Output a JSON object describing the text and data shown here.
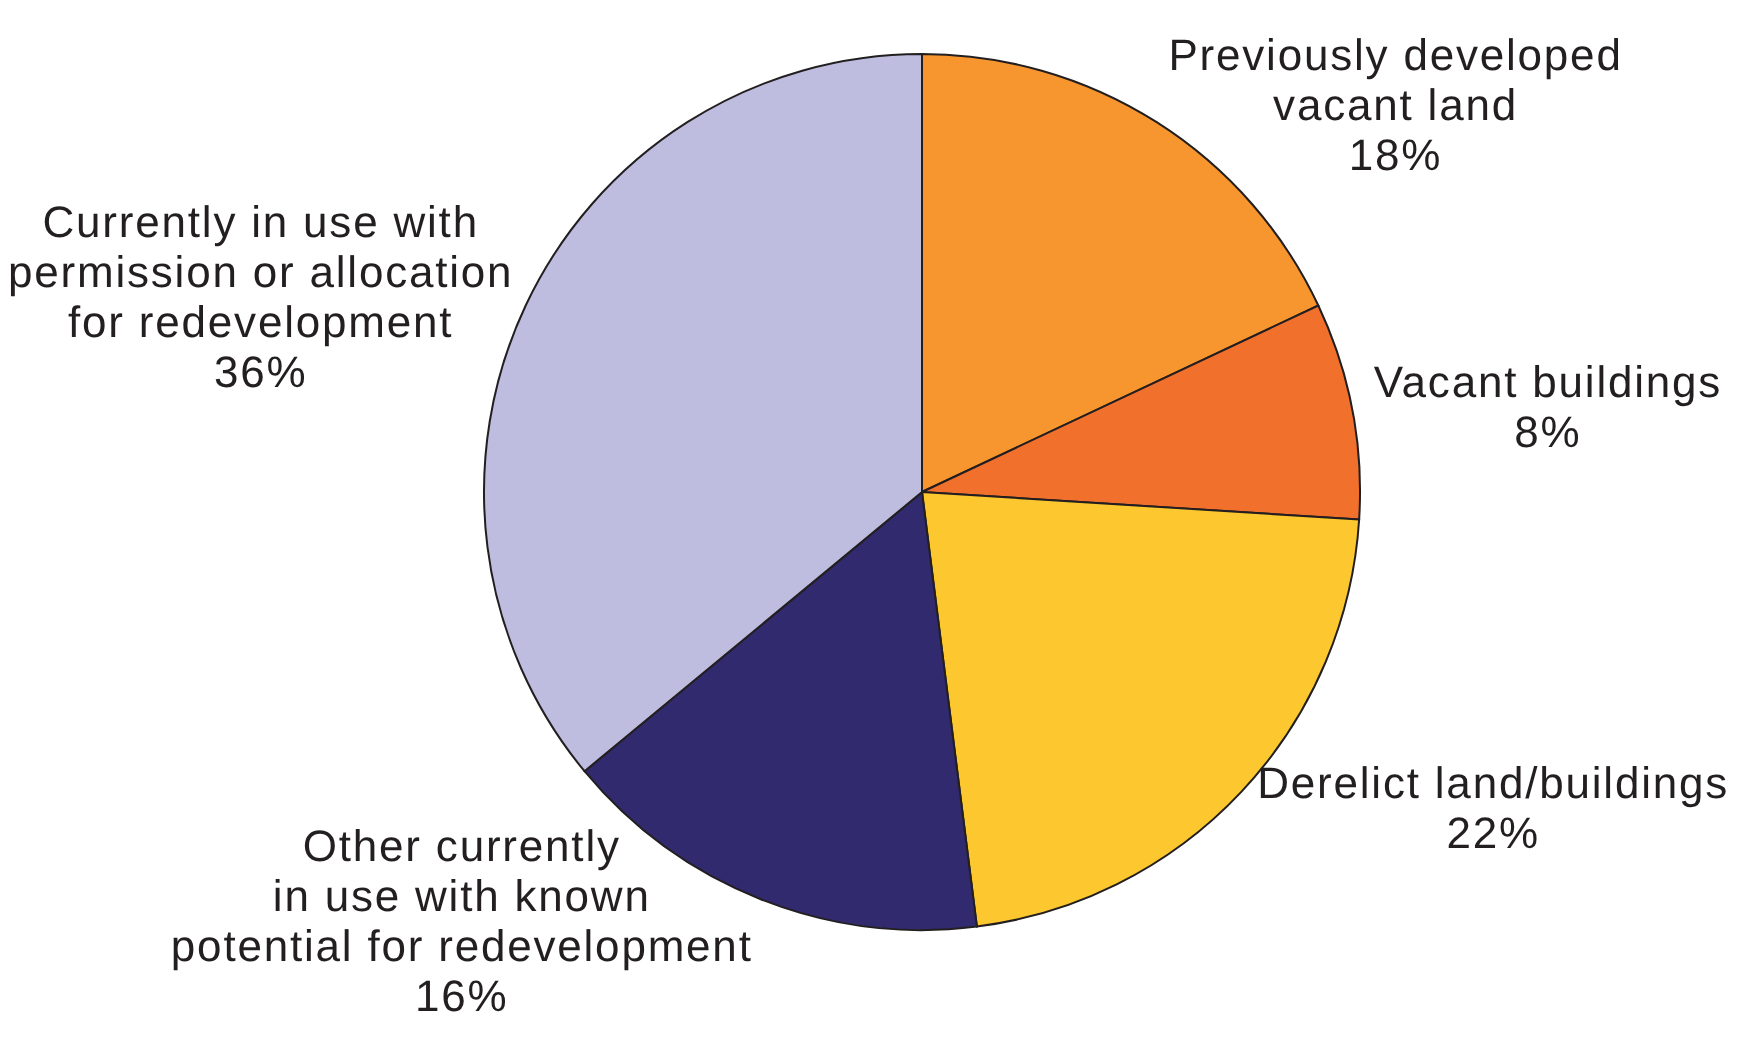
{
  "chart_data": {
    "type": "pie",
    "categories": [
      "Previously developed vacant land",
      "Vacant buildings",
      "Derelict land/buildings",
      "Other currently in use with known potential for redevelopment",
      "Currently in use with permission or allocation for redevelopment"
    ],
    "values": [
      18,
      8,
      22,
      16,
      36
    ],
    "colors": [
      "#f7962f",
      "#f0702c",
      "#fdc82f",
      "#312a6e",
      "#bebde0"
    ],
    "value_labels": [
      "18%",
      "8%",
      "22%",
      "16%",
      "36%"
    ]
  }
}
